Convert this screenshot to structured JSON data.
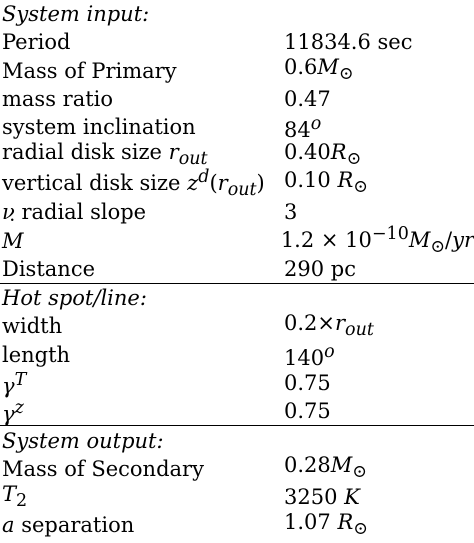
{
  "sections": [
    {
      "title": "System input:",
      "rows": [
        {
          "label": "Period",
          "value": "11834.6 sec"
        },
        {
          "label": "Mass of Primary",
          "value": "0.6M⊙"
        },
        {
          "label": "mass ratio",
          "value": "0.47"
        },
        {
          "label": "system inclination",
          "value": "84°"
        },
        {
          "label": "radial disk size r_out",
          "value": "0.40R⊙"
        },
        {
          "label": "vertical disk size z^d(r_out)",
          "value": "0.10 R⊙"
        },
        {
          "label": "ν radial slope",
          "value": "3"
        },
        {
          "label": "Ṁ",
          "value": "1.2 × 10^-10 M⊙/yr"
        },
        {
          "label": "Distance",
          "value": "290 pc"
        }
      ]
    },
    {
      "title": "Hot spot/line:",
      "rows": [
        {
          "label": "width",
          "value": "0.2×r_out"
        },
        {
          "label": "length",
          "value": "140°"
        },
        {
          "label": "γ^T",
          "value": "0.75"
        },
        {
          "label": "γ^z",
          "value": "0.75"
        }
      ]
    },
    {
      "title": "System output:",
      "rows": [
        {
          "label": "Mass of Secondary",
          "value": "0.28M⊙"
        },
        {
          "label": "T2",
          "value": "3250 K"
        },
        {
          "label": "a separation",
          "value": "1.07 R⊙"
        }
      ]
    }
  ]
}
